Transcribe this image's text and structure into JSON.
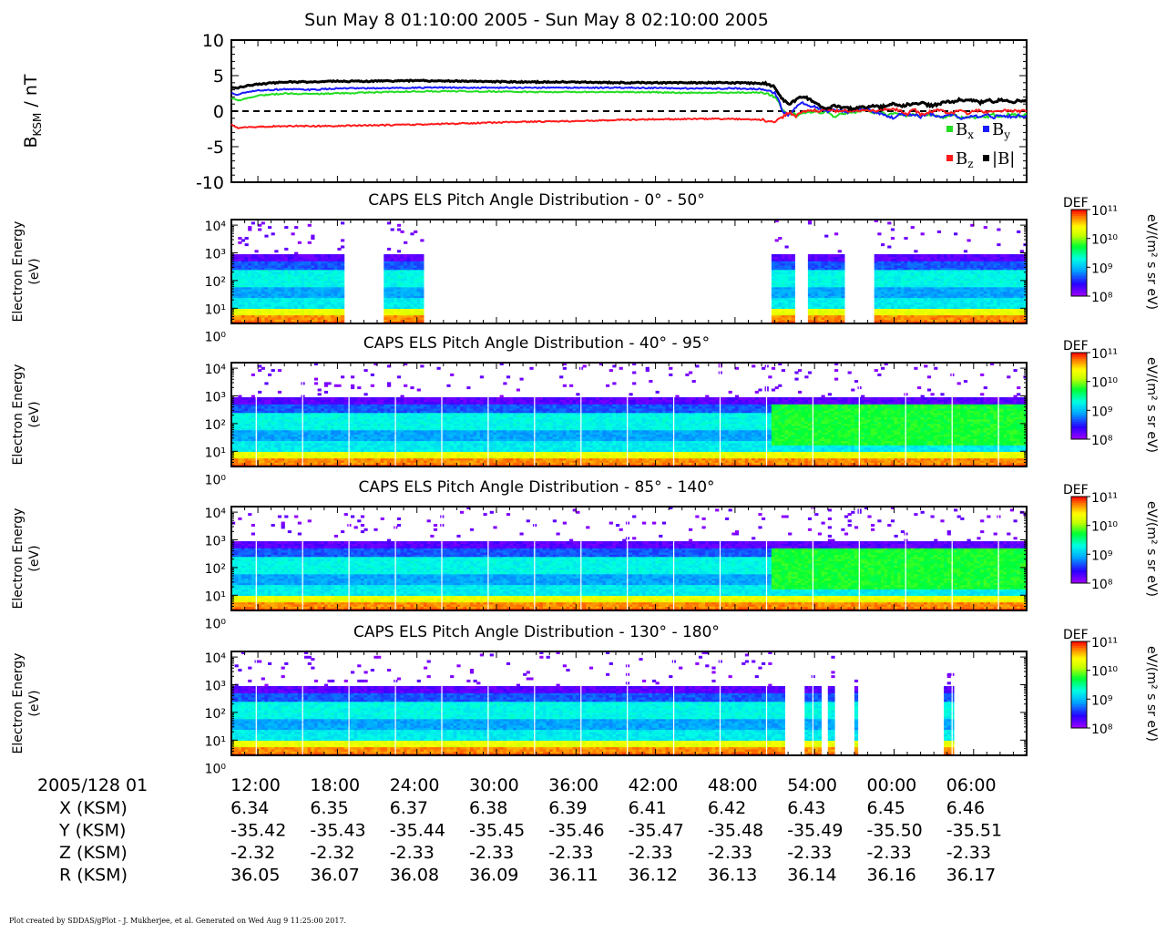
{
  "figure": {
    "title": "Sun May 8 01:10:00 2005 - Sun May 8 02:10:00 2005",
    "footer": "Plot created by SDDAS/gPlot - J. Mukherjee, et al.  Generated on Wed Aug 9 11:25:00 2017."
  },
  "mag_panel": {
    "ylabel": "B",
    "ylabel_sub": "KSM",
    "ylabel_unit": " / nT",
    "legend": [
      {
        "name": "B",
        "sub": "x",
        "color": "#22dd22"
      },
      {
        "name": "B",
        "sub": "y",
        "color": "#1a1aff"
      },
      {
        "name": "B",
        "sub": "z",
        "color": "#ff1a1a"
      },
      {
        "name": "|B|",
        "sub": "",
        "color": "#000000"
      }
    ]
  },
  "spectrogram_labels": {
    "ylabel_line1": "Electron Energy",
    "ylabel_line2": "(eV)",
    "cbar_title": "DEF",
    "cbar_unit": "eV/(m² s sr eV)"
  },
  "ephemeris": {
    "date_label": "2005/128 01",
    "rows": [
      {
        "label": "X (KSM)",
        "values": [
          "6.34",
          "6.35",
          "6.37",
          "6.38",
          "6.39",
          "6.41",
          "6.42",
          "6.43",
          "6.45",
          "6.46"
        ]
      },
      {
        "label": "Y (KSM)",
        "values": [
          "-35.42",
          "-35.43",
          "-35.44",
          "-35.45",
          "-35.46",
          "-35.47",
          "-35.48",
          "-35.49",
          "-35.50",
          "-35.51"
        ]
      },
      {
        "label": "Z (KSM)",
        "values": [
          "-2.32",
          "-2.32",
          "-2.33",
          "-2.33",
          "-2.33",
          "-2.33",
          "-2.33",
          "-2.33",
          "-2.33",
          "-2.33"
        ]
      },
      {
        "label": "R (KSM)",
        "values": [
          "36.05",
          "36.07",
          "36.08",
          "36.09",
          "36.11",
          "36.12",
          "36.13",
          "36.14",
          "36.16",
          "36.17"
        ]
      }
    ]
  },
  "chart_data": [
    {
      "type": "line",
      "title": "",
      "xlabel": "",
      "ylabel": "B_KSM / nT",
      "xlim": [
        10,
        70
      ],
      "ylim": [
        -10,
        10
      ],
      "x_unit": "minutes after 2005/128 01:00",
      "x_tick_labels": [
        "12:00",
        "18:00",
        "24:00",
        "30:00",
        "36:00",
        "42:00",
        "48:00",
        "54:00",
        "00:00",
        "06:00"
      ],
      "y_ticks": [
        -10,
        -5,
        0,
        5,
        10
      ],
      "zero_line": "dashed",
      "legend_position": "bottom-right",
      "series": [
        {
          "name": "Bx",
          "color": "#22dd22",
          "x": [
            10.0,
            10.5,
            11.0,
            12.0,
            14.0,
            16.0,
            18.0,
            20.0,
            24.0,
            28.0,
            32.0,
            36.0,
            40.0,
            44.0,
            48.0,
            50.0,
            50.5,
            51.0,
            51.3,
            51.6,
            52.0,
            52.3,
            52.6,
            53.0,
            53.5,
            54.0,
            54.5,
            55.0,
            55.5,
            56.0,
            56.5,
            57.0,
            57.5,
            58.0,
            58.5,
            59.0,
            59.5,
            60.0,
            60.5,
            61.0,
            61.5,
            62.0,
            62.5,
            63.0,
            63.5,
            64.0,
            64.5,
            65.0,
            65.5,
            66.0,
            66.5,
            67.0,
            67.5,
            68.0,
            68.5,
            69.0,
            69.5,
            70.0
          ],
          "y": [
            1.8,
            1.5,
            1.7,
            2.2,
            2.5,
            2.4,
            2.5,
            2.6,
            2.8,
            2.8,
            2.7,
            2.7,
            2.7,
            2.6,
            2.6,
            2.6,
            2.4,
            2.0,
            1.2,
            0.2,
            -0.4,
            -0.2,
            -0.6,
            -0.3,
            -0.2,
            0.0,
            -0.2,
            -0.1,
            -0.8,
            -0.4,
            -0.3,
            -0.2,
            0.1,
            0.2,
            -0.3,
            -0.2,
            -0.6,
            -0.3,
            -0.4,
            -0.7,
            -0.5,
            -0.6,
            -0.5,
            -0.4,
            -1.0,
            -0.7,
            -0.5,
            -1.0,
            -0.7,
            -0.9,
            -0.7,
            -0.8,
            -0.5,
            -0.9,
            -0.5,
            -0.4,
            -0.7,
            -0.5
          ]
        },
        {
          "name": "By",
          "color": "#1a1aff",
          "x": [
            10.0,
            10.5,
            11.0,
            12.0,
            14.0,
            16.0,
            18.0,
            20.0,
            24.0,
            28.0,
            32.0,
            36.0,
            40.0,
            44.0,
            48.0,
            50.0,
            50.5,
            51.0,
            51.3,
            51.6,
            52.0,
            52.3,
            52.6,
            53.0,
            53.5,
            54.0,
            54.5,
            55.0,
            55.5,
            56.0,
            56.5,
            57.0,
            57.5,
            58.0,
            58.5,
            59.0,
            59.5,
            60.0,
            60.5,
            61.0,
            61.5,
            62.0,
            62.5,
            63.0,
            63.5,
            64.0,
            64.5,
            65.0,
            65.5,
            66.0,
            66.5,
            67.0,
            67.5,
            68.0,
            68.5,
            69.0,
            69.5,
            70.0
          ],
          "y": [
            2.5,
            2.3,
            2.6,
            2.9,
            3.1,
            3.0,
            3.2,
            3.2,
            3.3,
            3.3,
            3.3,
            3.3,
            3.3,
            3.2,
            3.2,
            3.1,
            3.0,
            2.6,
            1.5,
            -0.1,
            -0.5,
            -0.2,
            0.6,
            1.3,
            0.8,
            0.6,
            0.2,
            -0.1,
            0.2,
            0.1,
            -0.1,
            0.0,
            0.3,
            0.3,
            -0.2,
            -0.3,
            -0.7,
            -1.0,
            -0.3,
            -0.6,
            -0.4,
            -0.8,
            -0.3,
            -0.5,
            -0.8,
            -0.6,
            -0.4,
            -1.1,
            -0.8,
            -0.6,
            -0.8,
            -0.5,
            -0.9,
            -0.5,
            -0.7,
            -0.8,
            -0.6,
            -0.8
          ]
        },
        {
          "name": "Bz",
          "color": "#ff1a1a",
          "x": [
            10.0,
            10.5,
            11.0,
            12.0,
            14.0,
            16.0,
            18.0,
            20.0,
            24.0,
            28.0,
            32.0,
            36.0,
            40.0,
            44.0,
            48.0,
            50.0,
            50.5,
            51.0,
            51.3,
            51.6,
            52.0,
            52.3,
            52.6,
            53.0,
            53.5,
            54.0,
            54.5,
            55.0,
            55.5,
            56.0,
            56.5,
            57.0,
            57.5,
            58.0,
            58.5,
            59.0,
            59.5,
            60.0,
            60.5,
            61.0,
            61.5,
            62.0,
            62.5,
            63.0,
            63.5,
            64.0,
            64.5,
            65.0,
            65.5,
            66.0,
            66.5,
            67.0,
            67.5,
            68.0,
            68.5,
            69.0,
            69.5,
            70.0
          ],
          "y": [
            -1.8,
            -2.4,
            -2.3,
            -2.2,
            -2.1,
            -2.1,
            -2.1,
            -2.0,
            -1.9,
            -1.7,
            -1.5,
            -1.4,
            -1.2,
            -1.1,
            -1.1,
            -1.2,
            -1.5,
            -1.4,
            -1.2,
            -0.8,
            -0.2,
            -0.4,
            -0.7,
            -0.2,
            0.0,
            0.1,
            0.0,
            0.2,
            0.0,
            0.1,
            0.0,
            0.1,
            0.0,
            0.2,
            0.0,
            0.1,
            0.4,
            0.3,
            0.1,
            -0.4,
            0.3,
            -0.5,
            -0.2,
            0.0,
            0.2,
            -0.4,
            -0.2,
            0.1,
            -0.3,
            0.0,
            0.1,
            -0.2,
            0.0,
            0.1,
            0.0,
            0.1,
            0.0,
            0.1
          ]
        },
        {
          "name": "|B|",
          "color": "#000000",
          "x": [
            10.0,
            10.5,
            11.0,
            12.0,
            14.0,
            16.0,
            18.0,
            20.0,
            24.0,
            28.0,
            32.0,
            36.0,
            40.0,
            44.0,
            48.0,
            50.0,
            50.5,
            51.0,
            51.3,
            51.6,
            52.0,
            52.3,
            52.6,
            53.0,
            53.5,
            54.0,
            54.5,
            55.0,
            55.5,
            56.0,
            56.5,
            57.0,
            57.5,
            58.0,
            58.5,
            59.0,
            59.5,
            60.0,
            60.5,
            61.0,
            61.5,
            62.0,
            62.5,
            63.0,
            63.5,
            64.0,
            64.5,
            65.0,
            65.5,
            66.0,
            66.5,
            67.0,
            67.5,
            68.0,
            68.5,
            69.0,
            69.5,
            70.0
          ],
          "y": [
            3.4,
            3.3,
            3.5,
            3.8,
            4.1,
            4.1,
            4.2,
            4.2,
            4.3,
            4.2,
            4.1,
            4.1,
            4.0,
            4.0,
            4.0,
            3.9,
            3.8,
            3.4,
            2.5,
            1.6,
            1.0,
            1.3,
            1.6,
            2.0,
            1.8,
            1.2,
            0.6,
            0.4,
            0.8,
            0.5,
            0.4,
            0.3,
            0.5,
            0.6,
            0.7,
            0.6,
            0.8,
            1.1,
            0.7,
            0.9,
            1.0,
            1.2,
            0.9,
            0.8,
            1.1,
            1.3,
            1.2,
            1.7,
            1.4,
            1.5,
            1.2,
            1.6,
            1.3,
            1.6,
            1.4,
            1.3,
            1.5,
            1.3
          ]
        }
      ]
    },
    {
      "type": "heatmap",
      "title": "CAPS ELS Pitch Angle Distribution - 0° - 50°",
      "ylabel": "Electron Energy (eV)",
      "yscale": "log",
      "y_ticks": [
        "10⁰",
        "10¹",
        "10²",
        "10³",
        "10⁴"
      ],
      "colorbar": {
        "label": "DEF",
        "unit": "eV/(m² s sr eV)",
        "scale": "log",
        "range": [
          100000000.0,
          100000000000.0
        ],
        "tick_labels": [
          "10⁸",
          "10⁹",
          "10¹⁰",
          "10¹¹"
        ]
      },
      "data_coverage_minutes": [
        [
          10.0,
          18.5
        ],
        [
          21.5,
          24.5
        ],
        [
          50.8,
          52.5
        ],
        [
          53.5,
          56.2
        ],
        [
          58.5,
          70.0
        ]
      ]
    },
    {
      "type": "heatmap",
      "title": "CAPS ELS Pitch Angle Distribution - 40° - 95°",
      "ylabel": "Electron Energy (eV)",
      "yscale": "log",
      "y_ticks": [
        "10⁰",
        "10¹",
        "10²",
        "10³",
        "10⁴"
      ],
      "colorbar": {
        "label": "DEF",
        "unit": "eV/(m² s sr eV)",
        "scale": "log",
        "range": [
          100000000.0,
          100000000000.0
        ],
        "tick_labels": [
          "10⁸",
          "10⁹",
          "10¹⁰",
          "10¹¹"
        ]
      },
      "data_coverage_minutes": [
        [
          10.0,
          70.0
        ]
      ]
    },
    {
      "type": "heatmap",
      "title": "CAPS ELS Pitch Angle Distribution - 85° - 140°",
      "ylabel": "Electron Energy (eV)",
      "yscale": "log",
      "y_ticks": [
        "10⁰",
        "10¹",
        "10²",
        "10³",
        "10⁴"
      ],
      "colorbar": {
        "label": "DEF",
        "unit": "eV/(m² s sr eV)",
        "scale": "log",
        "range": [
          100000000.0,
          100000000000.0
        ],
        "tick_labels": [
          "10⁸",
          "10⁹",
          "10¹⁰",
          "10¹¹"
        ]
      },
      "data_coverage_minutes": [
        [
          10.0,
          70.0
        ]
      ]
    },
    {
      "type": "heatmap",
      "title": "CAPS ELS Pitch Angle Distribution - 130° - 180°",
      "ylabel": "Electron Energy (eV)",
      "yscale": "log",
      "y_ticks": [
        "10⁰",
        "10¹",
        "10²",
        "10³",
        "10⁴"
      ],
      "colorbar": {
        "label": "DEF",
        "unit": "eV/(m² s sr eV)",
        "scale": "log",
        "range": [
          100000000.0,
          100000000000.0
        ],
        "tick_labels": [
          "10⁸",
          "10⁹",
          "10¹⁰",
          "10¹¹"
        ]
      },
      "data_coverage_minutes": [
        [
          10.0,
          51.7
        ],
        [
          53.3,
          54.6
        ],
        [
          55.0,
          55.5
        ],
        [
          57.0,
          57.2
        ],
        [
          63.8,
          64.5
        ]
      ]
    }
  ]
}
